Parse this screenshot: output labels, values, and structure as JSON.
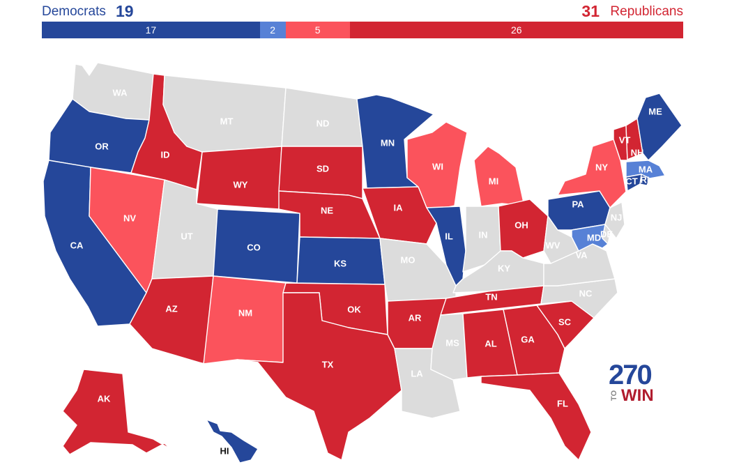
{
  "header": {
    "dem_label": "Democrats",
    "dem_total": "19",
    "rep_total": "31",
    "rep_label": "Republicans"
  },
  "seat_bar": [
    {
      "label": "17",
      "value": 17,
      "color": "#25479a"
    },
    {
      "label": "2",
      "value": 2,
      "color": "#5781d6"
    },
    {
      "label": "5",
      "value": 5,
      "color": "#fb535c"
    },
    {
      "label": "26",
      "value": 26,
      "color": "#d22532"
    }
  ],
  "colors": {
    "safe_dem": "#25479a",
    "lean_dem": "#5781d6",
    "lean_rep": "#fb535c",
    "safe_rep": "#d22532",
    "no_race": "#dcdcdc"
  },
  "states": [
    {
      "abbr": "WA",
      "status": "no_race"
    },
    {
      "abbr": "OR",
      "status": "safe_dem"
    },
    {
      "abbr": "CA",
      "status": "safe_dem"
    },
    {
      "abbr": "NV",
      "status": "lean_rep"
    },
    {
      "abbr": "ID",
      "status": "safe_rep"
    },
    {
      "abbr": "MT",
      "status": "no_race"
    },
    {
      "abbr": "WY",
      "status": "safe_rep"
    },
    {
      "abbr": "UT",
      "status": "no_race"
    },
    {
      "abbr": "AZ",
      "status": "safe_rep"
    },
    {
      "abbr": "CO",
      "status": "safe_dem"
    },
    {
      "abbr": "NM",
      "status": "lean_rep"
    },
    {
      "abbr": "ND",
      "status": "no_race"
    },
    {
      "abbr": "SD",
      "status": "safe_rep"
    },
    {
      "abbr": "NE",
      "status": "safe_rep"
    },
    {
      "abbr": "KS",
      "status": "safe_dem"
    },
    {
      "abbr": "OK",
      "status": "safe_rep"
    },
    {
      "abbr": "TX",
      "status": "safe_rep"
    },
    {
      "abbr": "MN",
      "status": "safe_dem"
    },
    {
      "abbr": "IA",
      "status": "safe_rep"
    },
    {
      "abbr": "MO",
      "status": "no_race"
    },
    {
      "abbr": "AR",
      "status": "safe_rep"
    },
    {
      "abbr": "LA",
      "status": "no_race"
    },
    {
      "abbr": "WI",
      "status": "lean_rep"
    },
    {
      "abbr": "IL",
      "status": "safe_dem"
    },
    {
      "abbr": "MI",
      "status": "lean_rep"
    },
    {
      "abbr": "IN",
      "status": "no_race"
    },
    {
      "abbr": "OH",
      "status": "safe_rep"
    },
    {
      "abbr": "KY",
      "status": "no_race"
    },
    {
      "abbr": "TN",
      "status": "safe_rep"
    },
    {
      "abbr": "MS",
      "status": "no_race"
    },
    {
      "abbr": "AL",
      "status": "safe_rep"
    },
    {
      "abbr": "GA",
      "status": "safe_rep"
    },
    {
      "abbr": "FL",
      "status": "safe_rep"
    },
    {
      "abbr": "SC",
      "status": "safe_rep"
    },
    {
      "abbr": "NC",
      "status": "no_race"
    },
    {
      "abbr": "VA",
      "status": "no_race"
    },
    {
      "abbr": "WV",
      "status": "no_race"
    },
    {
      "abbr": "PA",
      "status": "safe_dem"
    },
    {
      "abbr": "NY",
      "status": "lean_rep"
    },
    {
      "abbr": "VT",
      "status": "safe_rep"
    },
    {
      "abbr": "NH",
      "status": "safe_rep"
    },
    {
      "abbr": "ME",
      "status": "safe_dem"
    },
    {
      "abbr": "MA",
      "status": "lean_dem"
    },
    {
      "abbr": "RI",
      "status": "safe_dem"
    },
    {
      "abbr": "CT",
      "status": "safe_dem"
    },
    {
      "abbr": "NJ",
      "status": "no_race"
    },
    {
      "abbr": "DE",
      "status": "no_race"
    },
    {
      "abbr": "MD",
      "status": "lean_dem"
    },
    {
      "abbr": "AK",
      "status": "safe_rep"
    },
    {
      "abbr": "HI",
      "status": "safe_dem"
    }
  ],
  "logo": {
    "number": "270",
    "to": "TO",
    "win": "WIN"
  }
}
